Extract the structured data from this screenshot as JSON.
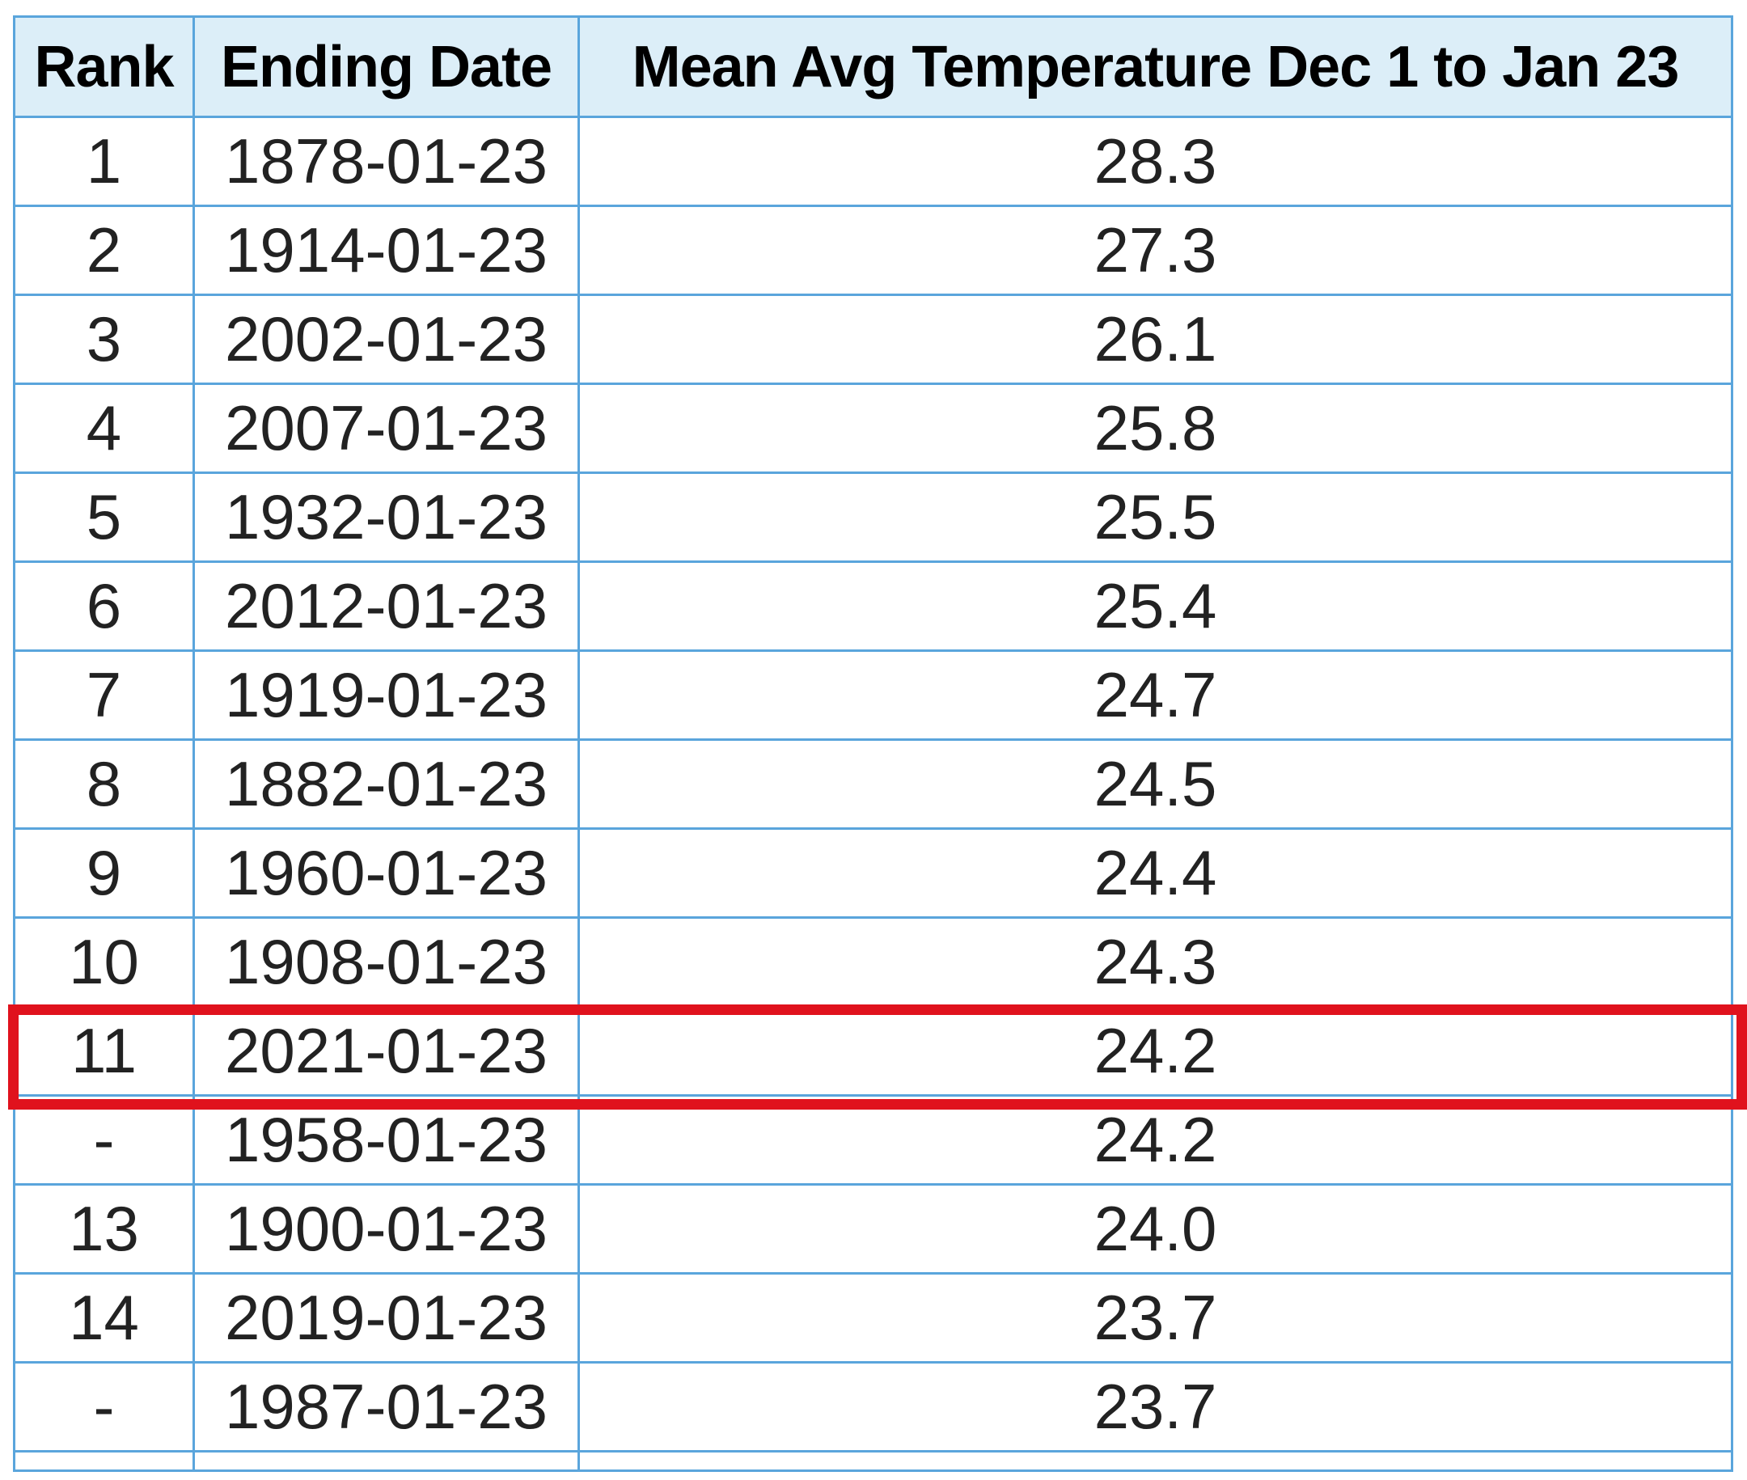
{
  "table": {
    "headers": [
      "Rank",
      "Ending Date",
      "Mean Avg Temperature Dec 1 to Jan 23"
    ],
    "rows": [
      {
        "rank": "1",
        "date": "1878-01-23",
        "mean": "28.3"
      },
      {
        "rank": "2",
        "date": "1914-01-23",
        "mean": "27.3"
      },
      {
        "rank": "3",
        "date": "2002-01-23",
        "mean": "26.1"
      },
      {
        "rank": "4",
        "date": "2007-01-23",
        "mean": "25.8"
      },
      {
        "rank": "5",
        "date": "1932-01-23",
        "mean": "25.5"
      },
      {
        "rank": "6",
        "date": "2012-01-23",
        "mean": "25.4"
      },
      {
        "rank": "7",
        "date": "1919-01-23",
        "mean": "24.7"
      },
      {
        "rank": "8",
        "date": "1882-01-23",
        "mean": "24.5"
      },
      {
        "rank": "9",
        "date": "1960-01-23",
        "mean": "24.4"
      },
      {
        "rank": "10",
        "date": "1908-01-23",
        "mean": "24.3"
      },
      {
        "rank": "11",
        "date": "2021-01-23",
        "mean": "24.2"
      },
      {
        "rank": "-",
        "date": "1958-01-23",
        "mean": "24.2"
      },
      {
        "rank": "13",
        "date": "1900-01-23",
        "mean": "24.0"
      },
      {
        "rank": "14",
        "date": "2019-01-23",
        "mean": "23.7"
      },
      {
        "rank": "-",
        "date": "1987-01-23",
        "mean": "23.7"
      }
    ],
    "highlighted_row_rank": "11"
  },
  "colors": {
    "border": "#5aa5dc",
    "header_background": "#dceef8",
    "highlight": "#e0121d"
  }
}
